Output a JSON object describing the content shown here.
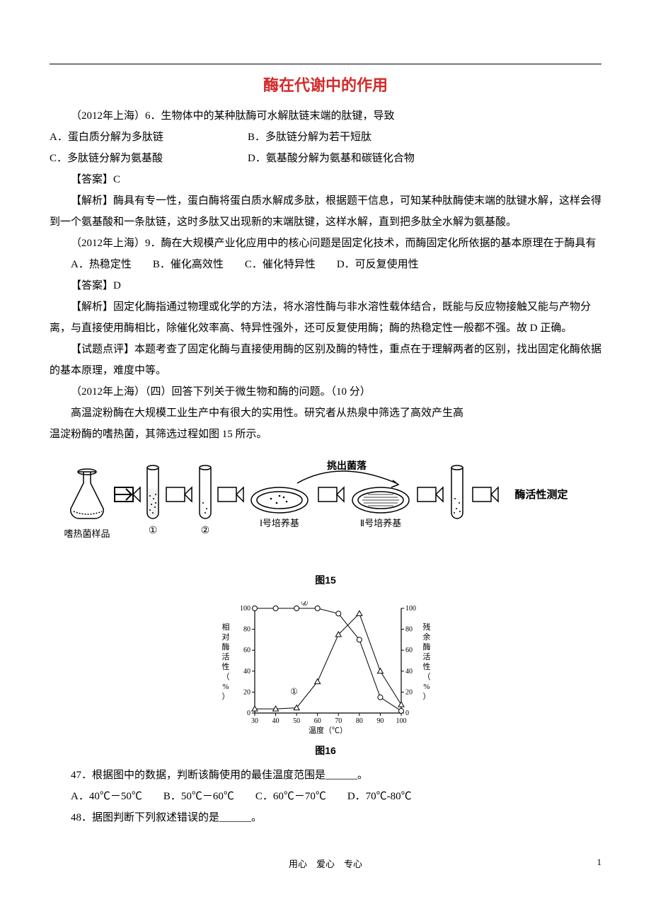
{
  "title": "酶在代谢中的作用",
  "q1": {
    "stem": "（2012年上海）6．生物体中的某种肽酶可水解肽链末端的肽键，导致",
    "A": "A．蛋白质分解为多肽链",
    "B": "B．多肽链分解为若干短肽",
    "C": "C．多肽链分解为氨基酸",
    "D": "D．氨基酸分解为氨基和碳链化合物",
    "ans": "【答案】C",
    "exp": "【解析】酶具有专一性，蛋白酶将蛋白质水解成多肽，根据题干信息，可知某种肽酶使末端的肽键水解，这样会得到一个氨基酸和一条肽链，这时多肽又出现新的末端肽键，这样水解，直到把多肽全水解为氨基酸。"
  },
  "q2": {
    "stem": "（2012年上海）9．酶在大规模产业化应用中的核心问题是固定化技术，而酶固定化所依据的基本原理在于酶具有",
    "opts": "A．热稳定性　　B．催化高效性　　C．催化特异性　　D．可反复使用性",
    "ans": "【答案】D",
    "exp": "【解析】固定化酶指通过物理或化学的方法，将水溶性酶与非水溶性载体结合，既能与反应物接触又能与产物分离，与直接使用酶相比，除催化效率高、特异性强外，还可反复使用酶；酶的热稳定性一般都不强。故 D 正确。",
    "note": "【试题点评】本题考查了固定化酶与直接使用酶的区别及酶的特性，重点在于理解两者的区别，找出固定化酶依据的基本原理，难度中等。"
  },
  "q3": {
    "stem": "（2012年上海）（四）回答下列关于微生物和酶的问题。（10 分）",
    "p1": "高温淀粉酶在大规模工业生产中有很大的实用性。研究者从热泉中筛选了高效产生高",
    "p2": "温淀粉酶的嗜热菌，其筛选过程如图 15 所示。"
  },
  "fig15": {
    "caption": "图15",
    "labels": {
      "sample": "嗜热菌样品",
      "dil1": "①",
      "dil2": "②",
      "plate1": "Ⅰ号培养基",
      "plate2": "Ⅱ号培养基",
      "pick": "挑出菌落",
      "assay": "酶活性测定"
    }
  },
  "fig16": {
    "caption": "图16",
    "type": "line",
    "xlabel": "温度（℃）",
    "ylabel_left": "相对酶活性（%）",
    "ylabel_right": "残余酶活性（%）",
    "xlim": [
      30,
      100
    ],
    "xtick": [
      30,
      40,
      50,
      60,
      70,
      80,
      90,
      100
    ],
    "ylim": [
      0,
      100
    ],
    "ytick": [
      0,
      20,
      40,
      60,
      80,
      100
    ],
    "series": {
      "relative": {
        "label": "①",
        "marker": "triangle",
        "color": "#000000",
        "x": [
          30,
          40,
          50,
          60,
          70,
          80,
          90,
          100
        ],
        "y": [
          4,
          4,
          5,
          30,
          75,
          95,
          40,
          8
        ]
      },
      "residual": {
        "label": "②",
        "marker": "circle",
        "color": "#000000",
        "x": [
          30,
          40,
          50,
          60,
          70,
          80,
          90,
          100
        ],
        "y": [
          100,
          100,
          100,
          100,
          95,
          70,
          15,
          2
        ]
      }
    },
    "title_fontsize": 12,
    "label_fontsize": 11,
    "background_color": "#ffffff",
    "line_width": 1
  },
  "q47": {
    "stem": "47．根据图中的数据，判断该酶使用的最佳温度范围是______。",
    "opts": "A．40℃－50℃　　B．50℃－60℃　　C．60℃－70℃　　D．70℃-80℃"
  },
  "q48": {
    "stem": "48．据图判断下列叙述错误的是______。"
  },
  "footer": {
    "motto": "用心　爱心　专心",
    "page": "1"
  },
  "colors": {
    "title": "#d42a2a",
    "text": "#000000",
    "rule": "#000000",
    "bg": "#ffffff"
  }
}
